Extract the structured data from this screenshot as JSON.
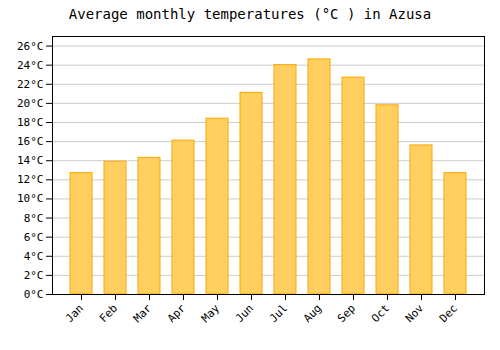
{
  "chart_data": {
    "type": "bar",
    "title": "Average monthly temperatures (°C ) in Azusa",
    "categories": [
      "Jan",
      "Feb",
      "Mar",
      "Apr",
      "May",
      "Jun",
      "Jul",
      "Aug",
      "Sep",
      "Oct",
      "Nov",
      "Dec"
    ],
    "values": [
      12.7,
      13.9,
      14.3,
      16.1,
      18.4,
      21.1,
      24.0,
      24.6,
      22.7,
      19.8,
      15.6,
      12.7
    ],
    "color": "#FFD060",
    "ylim": [
      0,
      27
    ],
    "yticks": [
      {
        "value": 0,
        "label": "0°C"
      },
      {
        "value": 2,
        "label": "2°C"
      },
      {
        "value": 4,
        "label": "4°C"
      },
      {
        "value": 6,
        "label": "6°C"
      },
      {
        "value": 8,
        "label": "8°C"
      },
      {
        "value": 10,
        "label": "10°C"
      },
      {
        "value": 12,
        "label": "12°C"
      },
      {
        "value": 14,
        "label": "14°C"
      },
      {
        "value": 16,
        "label": "16°C"
      },
      {
        "value": 18,
        "label": "18°C"
      },
      {
        "value": 20,
        "label": "20°C"
      },
      {
        "value": 22,
        "label": "22°C"
      },
      {
        "value": 24,
        "label": "24°C"
      },
      {
        "value": 26,
        "label": "26°C"
      }
    ],
    "grid": true
  }
}
